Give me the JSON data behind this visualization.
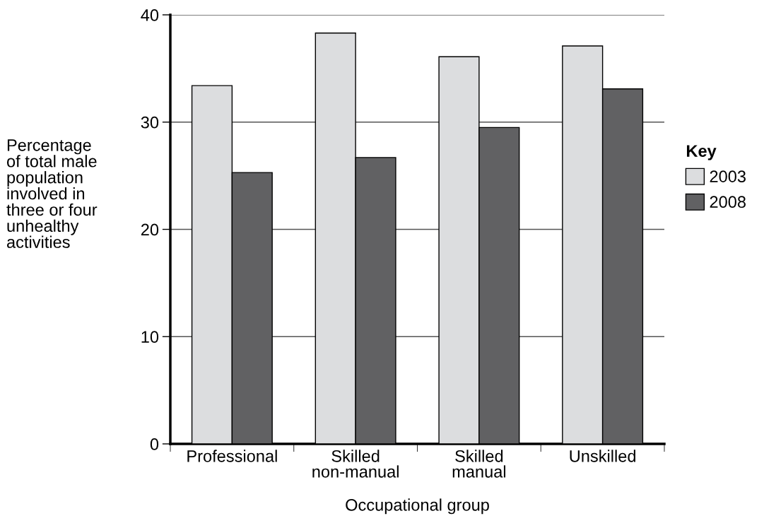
{
  "chart_data": {
    "type": "bar",
    "categories": [
      "Professional",
      "Skilled\nnon-manual",
      "Skilled\nmanual",
      "Unskilled"
    ],
    "series": [
      {
        "name": "2003",
        "color": "#dcdddf",
        "values": [
          33.4,
          38.3,
          36.1,
          37.1
        ]
      },
      {
        "name": "2008",
        "color": "#616163",
        "values": [
          25.3,
          26.7,
          29.5,
          33.1
        ]
      }
    ],
    "xlabel": "Occupational group",
    "ylabel": "Percentage\nof total male\npopulation\ninvolved in\nthree or four\nunhealthy\nactivities",
    "legend_title": "Key",
    "ylim": [
      0,
      40
    ],
    "yticks": [
      0,
      10,
      20,
      30,
      40
    ],
    "grid": "y",
    "legend": "right"
  }
}
